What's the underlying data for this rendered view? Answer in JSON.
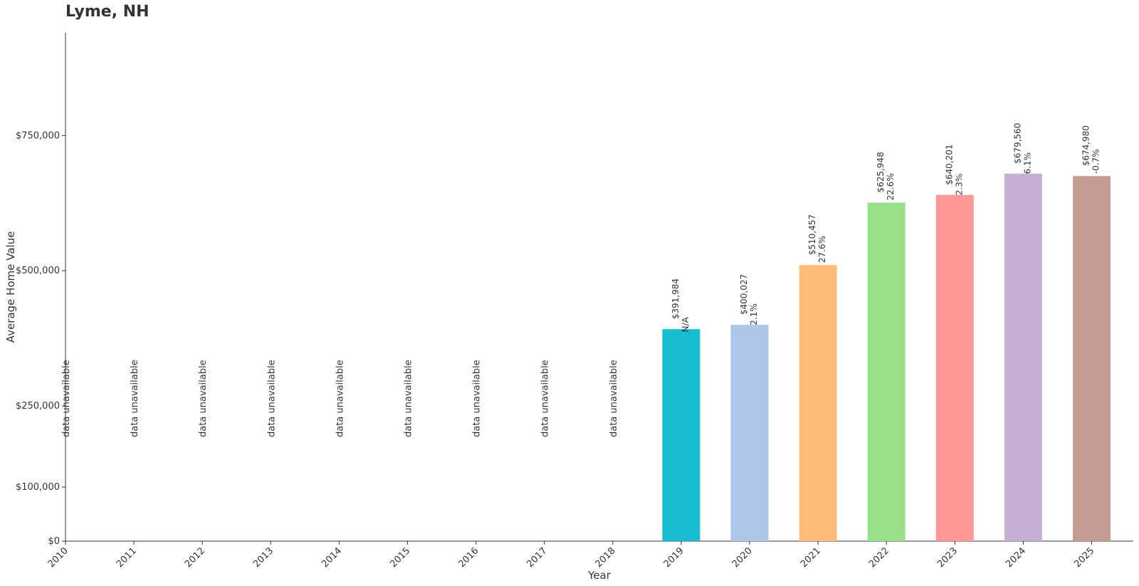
{
  "chart_data": {
    "type": "bar",
    "title": "Lyme, NH",
    "xlabel": "Year",
    "ylabel": "Average Home Value",
    "categories": [
      "2010",
      "2011",
      "2012",
      "2013",
      "2014",
      "2015",
      "2016",
      "2017",
      "2018",
      "2019",
      "2020",
      "2021",
      "2022",
      "2023",
      "2024",
      "2025"
    ],
    "values": [
      null,
      null,
      null,
      null,
      null,
      null,
      null,
      null,
      null,
      391984,
      400027,
      510457,
      625948,
      640201,
      679560,
      674980
    ],
    "value_labels": [
      "",
      "",
      "",
      "",
      "",
      "",
      "",
      "",
      "",
      "$391,984",
      "$400,027",
      "$510,457",
      "$625,948",
      "$640,201",
      "$679,560",
      "$674,980"
    ],
    "change_labels": [
      "",
      "",
      "",
      "",
      "",
      "",
      "",
      "",
      "",
      "N/A",
      "2.1%",
      "27.6%",
      "22.6%",
      "2.3%",
      "6.1%",
      "-0.7%"
    ],
    "missing_label": "data unavailable",
    "colors": [
      "#17becf",
      "#17becf",
      "#17becf",
      "#17becf",
      "#17becf",
      "#17becf",
      "#17becf",
      "#17becf",
      "#17becf",
      "#17becf",
      "#aec7e8",
      "#ffbb78",
      "#98df8a",
      "#ff9896",
      "#c5b0d5",
      "#c49c94"
    ],
    "yticks": [
      0,
      100000,
      250000,
      500000,
      750000
    ],
    "ytick_labels": [
      "$0",
      "$100,000",
      "$250,000",
      "$500,000",
      "$750,000"
    ],
    "ylim": [
      0,
      940000
    ],
    "grid": false,
    "legend": "none"
  }
}
